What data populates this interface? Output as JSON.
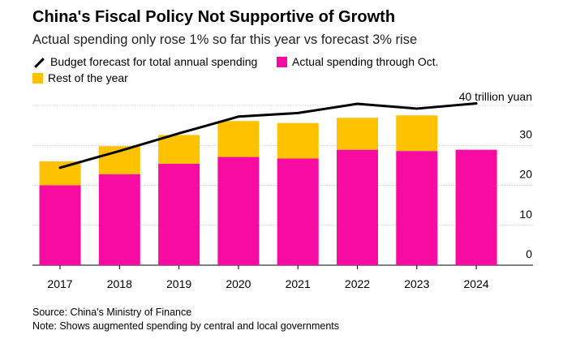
{
  "header": {
    "title": "China's Fiscal Policy Not Supportive of Growth",
    "subtitle": "Actual spending only rose 1% so far this year vs forecast 3% rise"
  },
  "legend": {
    "line_label": "Budget forecast for total annual spending",
    "actual_label": "Actual spending through Oct.",
    "rest_label": "Rest of the year"
  },
  "colors": {
    "actual": "#f80ba0",
    "rest": "#fec200",
    "line": "#000000",
    "grid": "#bdbdbd"
  },
  "chart_data": {
    "type": "bar",
    "stacked": true,
    "categories": [
      "2017",
      "2018",
      "2019",
      "2020",
      "2021",
      "2022",
      "2023",
      "2024"
    ],
    "series": [
      {
        "name": "Actual spending through Oct.",
        "kind": "bar",
        "values": [
          20.0,
          22.8,
          25.4,
          27.1,
          26.7,
          28.9,
          28.6,
          28.9
        ]
      },
      {
        "name": "Rest of the year",
        "kind": "bar",
        "values": [
          6.0,
          7.0,
          7.2,
          9.0,
          8.9,
          8.0,
          8.9,
          null
        ]
      },
      {
        "name": "Budget forecast for total annual spending",
        "kind": "line",
        "values": [
          24.4,
          28.6,
          33.0,
          37.2,
          38.1,
          40.4,
          39.2,
          40.5
        ]
      }
    ],
    "y_ticks": [
      0,
      10,
      20,
      30
    ],
    "y_ticks_labels": [
      "0",
      "10",
      "20",
      "30"
    ],
    "ylim": [
      0,
      40
    ],
    "y_annotation": "40 trillion yuan",
    "grid": true,
    "y_axis_side": "right"
  },
  "footer": {
    "source": "Source: China's Ministry of Finance",
    "note": "Note: Shows augmented spending by central and local governments"
  }
}
